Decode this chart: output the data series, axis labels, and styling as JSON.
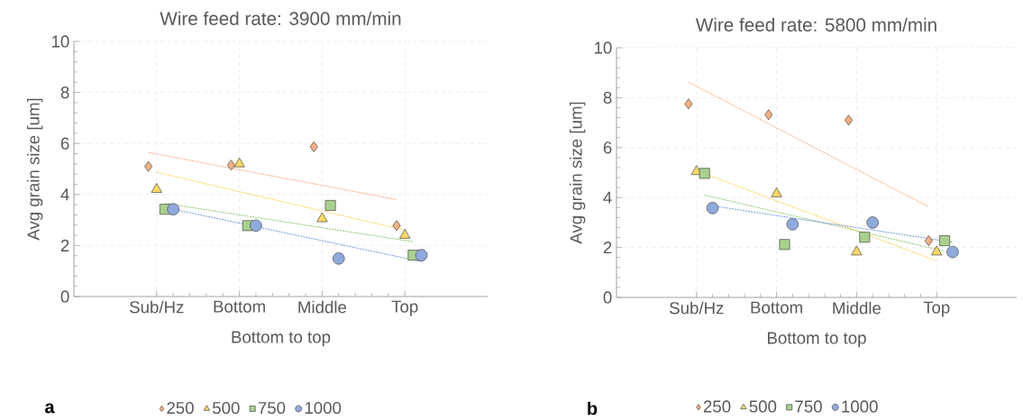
{
  "chart_data": [
    {
      "type": "scatter",
      "title": "Wire feed rate: 3900 mm/min",
      "xlabel": "Bottom to top",
      "ylabel": "Avg grain size [um]",
      "categories": [
        "Sub/Hz",
        "Bottom",
        "Middle",
        "Top"
      ],
      "ylim": [
        0,
        10
      ],
      "yticks": [
        0,
        2,
        4,
        6,
        8,
        10
      ],
      "grid": true,
      "legend": "bottom",
      "annotations": [
        "a"
      ],
      "series": [
        {
          "name": "250",
          "color": "#f4b183",
          "marker": "diamond",
          "values": [
            5.1,
            5.15,
            5.87,
            2.78
          ]
        },
        {
          "name": "500",
          "color": "#ffd966",
          "marker": "triangle",
          "values": [
            4.2,
            5.2,
            3.05,
            2.4
          ]
        },
        {
          "name": "750",
          "color": "#a9d18e",
          "marker": "square",
          "values": [
            3.42,
            2.78,
            3.57,
            1.62
          ]
        },
        {
          "name": "1000",
          "color": "#8faadc",
          "marker": "circle",
          "values": [
            3.42,
            2.78,
            1.49,
            1.62
          ]
        },
        {
          "type": "line",
          "color": "#f4a77a",
          "line_style": "dashed",
          "values": [
            5.65,
            5.03,
            4.42,
            3.8
          ]
        },
        {
          "type": "line",
          "color": "#ffd040",
          "line_style": "dashed",
          "values": [
            4.87,
            4.11,
            3.36,
            2.6
          ]
        },
        {
          "type": "line",
          "color": "#8cc36a",
          "line_style": "dashed",
          "values": [
            3.65,
            3.15,
            2.65,
            2.15
          ]
        },
        {
          "type": "line",
          "color": "#6f93d6",
          "line_style": "dashed",
          "values": [
            3.42,
            2.74,
            2.05,
            1.37
          ]
        }
      ]
    },
    {
      "type": "scatter",
      "title": "Wire feed rate: 5800 mm/min",
      "xlabel": "Bottom to top",
      "ylabel": "Avg grain size [um]",
      "categories": [
        "Sub/Hz",
        "Bottom",
        "Middle",
        "Top"
      ],
      "ylim": [
        0,
        10
      ],
      "yticks": [
        0,
        2,
        4,
        6,
        8,
        10
      ],
      "grid": true,
      "legend": "bottom",
      "annotations": [
        "b"
      ],
      "series": [
        {
          "name": "250",
          "color": "#f4b183",
          "marker": "diamond",
          "values": [
            7.75,
            7.32,
            7.1,
            2.27
          ]
        },
        {
          "name": "500",
          "color": "#ffd966",
          "marker": "triangle",
          "values": [
            5.04,
            4.15,
            1.82,
            1.82
          ]
        },
        {
          "name": "750",
          "color": "#a9d18e",
          "marker": "square",
          "values": [
            4.97,
            2.12,
            2.41,
            2.27
          ]
        },
        {
          "name": "1000",
          "color": "#8faadc",
          "marker": "circle",
          "values": [
            3.58,
            2.93,
            3.0,
            1.82
          ]
        },
        {
          "type": "line",
          "color": "#f4a77a",
          "line_style": "dashed",
          "values": [
            8.62,
            6.96,
            5.29,
            3.63
          ]
        },
        {
          "type": "line",
          "color": "#ffd040",
          "line_style": "dashed",
          "values": [
            5.08,
            3.87,
            2.67,
            1.46
          ]
        },
        {
          "type": "line",
          "color": "#8cc36a",
          "line_style": "dashed",
          "values": [
            4.1,
            3.35,
            2.6,
            1.85
          ]
        },
        {
          "type": "line",
          "color": "#6f93d6",
          "line_style": "dashed",
          "values": [
            3.67,
            3.18,
            2.7,
            2.21
          ]
        }
      ]
    }
  ]
}
